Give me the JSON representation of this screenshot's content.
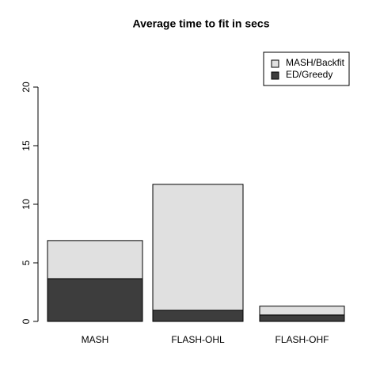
{
  "chart_data": {
    "type": "stacked_bar",
    "title": "Average time to fit in secs",
    "categories": [
      "MASH",
      "FLASH-OHL",
      "FLASH-OHF"
    ],
    "series": [
      {
        "name": "MASH/Backfit",
        "color": "#e0e0e0",
        "values": [
          3.25,
          10.75,
          0.75
        ]
      },
      {
        "name": "ED/Greedy",
        "color": "#3d3d3d",
        "values": [
          3.65,
          0.95,
          0.55
        ]
      }
    ],
    "ylim": [
      0,
      20
    ],
    "yticks": [
      0,
      5,
      10,
      15,
      20
    ],
    "legend": "top-right"
  }
}
